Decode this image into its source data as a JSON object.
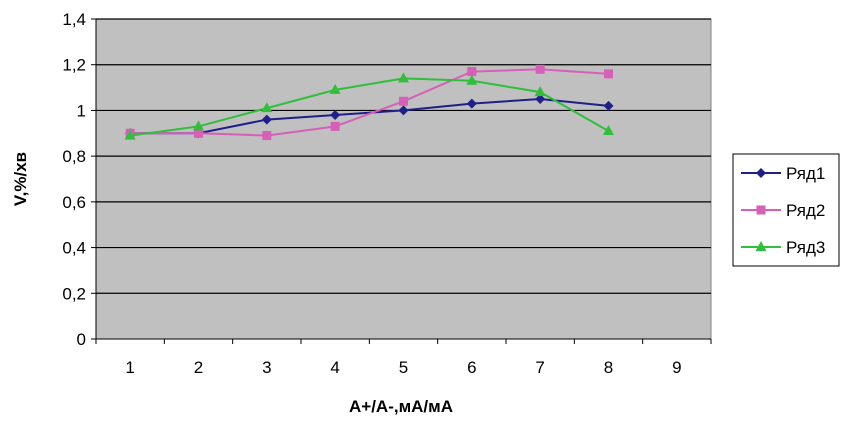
{
  "chart_data": {
    "type": "line",
    "title": "",
    "xlabel": "A+/A-,мА/мА",
    "ylabel": "V,%/хв",
    "x": [
      1,
      2,
      3,
      4,
      5,
      6,
      7,
      8
    ],
    "x_ticks": [
      1,
      2,
      3,
      4,
      5,
      6,
      7,
      8,
      9
    ],
    "y_ticks": [
      "0",
      "0,2",
      "0,4",
      "0,6",
      "0,8",
      "1",
      "1,2",
      "1,4"
    ],
    "ylim": [
      0,
      1.4
    ],
    "grid": "horizontal",
    "plot_background": "#c0c0c0",
    "legend_position": "right",
    "series": [
      {
        "name": "Ряд1",
        "color": "#1f1f8a",
        "marker": "diamond",
        "values": [
          0.9,
          0.9,
          0.96,
          0.98,
          1.0,
          1.03,
          1.05,
          1.02
        ]
      },
      {
        "name": "Ряд2",
        "color": "#d65fb8",
        "marker": "square",
        "values": [
          0.9,
          0.9,
          0.89,
          0.93,
          1.04,
          1.17,
          1.18,
          1.16
        ]
      },
      {
        "name": "Ряд3",
        "color": "#2fbf3a",
        "marker": "triangle",
        "values": [
          0.89,
          0.93,
          1.01,
          1.09,
          1.14,
          1.13,
          1.08,
          0.91
        ]
      }
    ]
  }
}
